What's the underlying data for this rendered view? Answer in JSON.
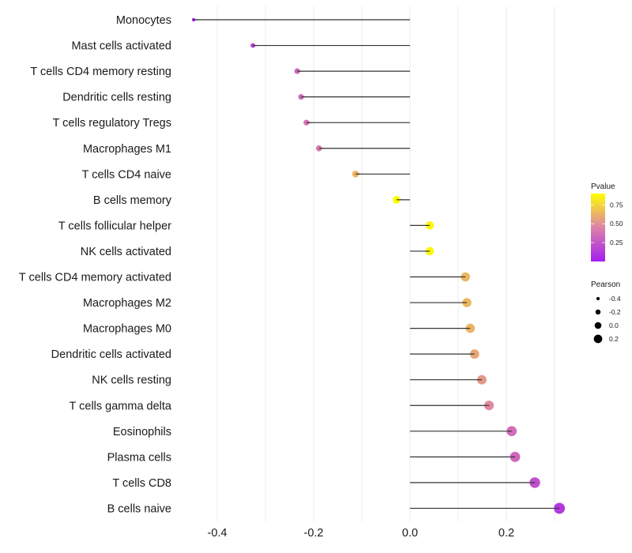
{
  "chart_data": {
    "type": "lollipop",
    "title": "",
    "xlabel": "",
    "ylabel": "",
    "xlim": [
      -0.46,
      0.33
    ],
    "x_ticks": [
      -0.4,
      -0.2,
      0.0,
      0.2
    ],
    "x_tick_labels": [
      "-0.4",
      "-0.2",
      "0.0",
      "0.2"
    ],
    "grid": true,
    "categories": [
      "Monocytes",
      "Mast cells activated",
      "T cells CD4 memory resting",
      "Dendritic cells resting",
      "T cells regulatory  Tregs",
      "Macrophages M1",
      "T cells CD4 naive",
      "B cells memory",
      "T cells follicular helper",
      "NK cells activated",
      "T cells CD4 memory activated",
      "Macrophages M2",
      "Macrophages M0",
      "Dendritic cells activated",
      "NK cells resting",
      "T cells gamma delta",
      "Eosinophils",
      "Plasma cells",
      "T cells CD8",
      "B cells naive"
    ],
    "series": [
      {
        "name": "Pearson",
        "values": [
          -0.449,
          -0.326,
          -0.234,
          -0.226,
          -0.215,
          -0.189,
          -0.113,
          -0.028,
          0.041,
          0.041,
          0.115,
          0.118,
          0.125,
          0.134,
          0.149,
          0.164,
          0.211,
          0.218,
          0.259,
          0.31
        ]
      },
      {
        "name": "Pvalue",
        "values": [
          0.01,
          0.15,
          0.32,
          0.35,
          0.38,
          0.42,
          0.64,
          0.89,
          0.87,
          0.87,
          0.64,
          0.64,
          0.63,
          0.58,
          0.53,
          0.48,
          0.35,
          0.33,
          0.22,
          0.12
        ]
      }
    ],
    "legend": {
      "placement": "right",
      "color": {
        "title": "Pvalue",
        "ticks": [
          0.25,
          0.5,
          0.75
        ],
        "tick_labels": [
          "0.25",
          "0.50",
          "0.75"
        ],
        "range": [
          0.0,
          0.9
        ],
        "low_color": "#a41ef1",
        "mid_color": "#dd82a8",
        "high_color": "#ffff00"
      },
      "size": {
        "title": "Pearson",
        "values": [
          -0.4,
          -0.2,
          0.0,
          0.2
        ],
        "labels": [
          "-0.4",
          "-0.2",
          "0.0",
          "0.2"
        ]
      }
    }
  }
}
